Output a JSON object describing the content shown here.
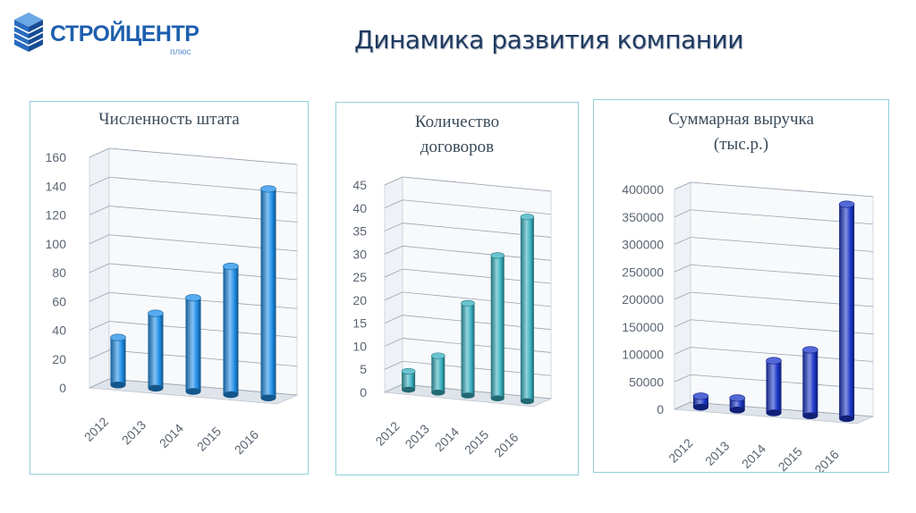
{
  "header": {
    "logo_name": "СТРОЙЦЕНТР",
    "logo_sub": "плюс",
    "title": "Динамика развития компании",
    "logo_color": "#1e5fae"
  },
  "chart_data": [
    {
      "type": "bar",
      "title": [
        "Численность штата"
      ],
      "categories": [
        "2012",
        "2013",
        "2014",
        "2015",
        "2016"
      ],
      "values": [
        33,
        52,
        65,
        89,
        145
      ],
      "yticks": [
        0,
        20,
        40,
        60,
        80,
        100,
        120,
        140,
        160
      ],
      "ylim": [
        0,
        160
      ],
      "color": "#1f8fe8",
      "grid": true
    },
    {
      "type": "bar",
      "title": [
        "Количество",
        "договоров"
      ],
      "categories": [
        "2012",
        "2013",
        "2014",
        "2015",
        "2016"
      ],
      "values": [
        4,
        8,
        20,
        31,
        40
      ],
      "yticks": [
        0,
        5,
        10,
        15,
        20,
        25,
        30,
        35,
        40,
        45
      ],
      "ylim": [
        0,
        45
      ],
      "color": "#38b0c0",
      "grid": true
    },
    {
      "type": "bar",
      "title": [
        "Суммарная выручка",
        "(тыс.р.)"
      ],
      "categories": [
        "2012",
        "2013",
        "2014",
        "2015",
        "2016"
      ],
      "values": [
        20000,
        22000,
        95000,
        120000,
        390000
      ],
      "yticks": [
        0,
        50000,
        100000,
        150000,
        200000,
        250000,
        300000,
        350000,
        400000
      ],
      "ylim": [
        0,
        400000
      ],
      "color": "#1a36c8",
      "grid": true
    }
  ]
}
